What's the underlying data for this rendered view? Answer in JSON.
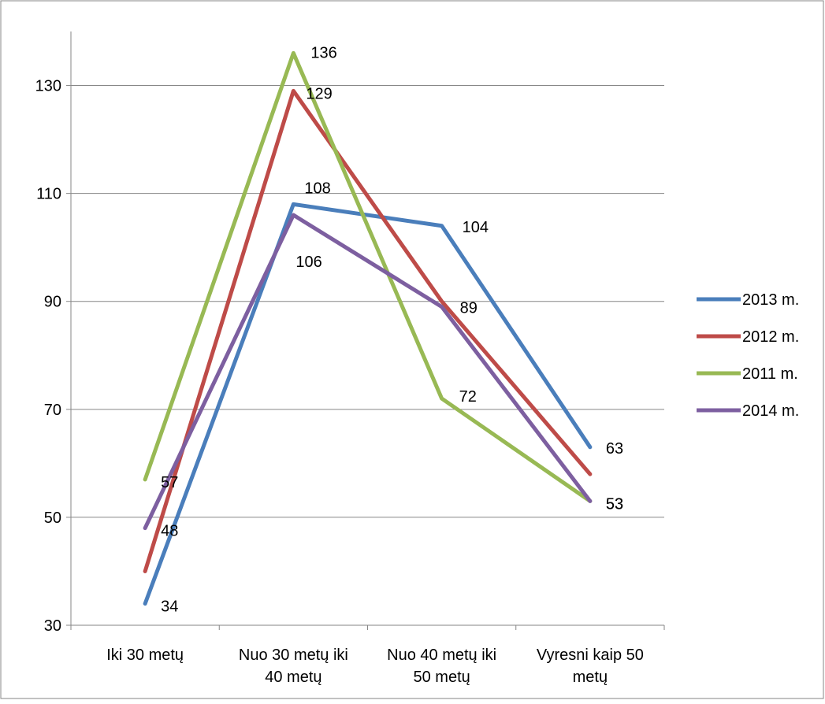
{
  "chart_data": {
    "type": "line",
    "title": "",
    "xlabel": "",
    "ylabel": "",
    "categories": [
      [
        "Iki 30 metų"
      ],
      [
        "Nuo 30 metų iki",
        "40 metų"
      ],
      [
        "Nuo 40 metų iki",
        "50 metų"
      ],
      [
        "Vyresni kaip 50",
        "metų"
      ]
    ],
    "ylim": [
      30,
      140
    ],
    "yticks": [
      30,
      50,
      70,
      90,
      110,
      130
    ],
    "grid": true,
    "legend_position": "right",
    "series": [
      {
        "name": "2013 m.",
        "color": "#4a7ebb",
        "values": [
          34,
          108,
          104,
          63
        ],
        "labels": [
          "34",
          "108",
          "104",
          "63"
        ]
      },
      {
        "name": "2012 m.",
        "color": "#be4b48",
        "values": [
          40,
          129,
          90,
          58
        ],
        "labels": [
          "",
          "129",
          "",
          ""
        ]
      },
      {
        "name": "2011 m.",
        "color": "#98b954",
        "values": [
          57,
          136,
          72,
          53
        ],
        "labels": [
          "57",
          "136",
          "72",
          "53"
        ]
      },
      {
        "name": "2014 m.",
        "color": "#7d5fa0",
        "values": [
          48,
          106,
          89,
          53
        ],
        "labels": [
          "48",
          "106",
          "89",
          "53"
        ]
      }
    ]
  }
}
